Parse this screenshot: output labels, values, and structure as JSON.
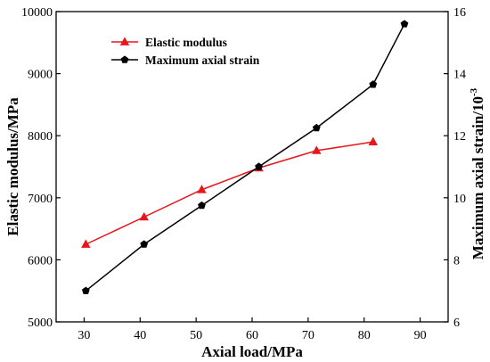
{
  "chart_data": {
    "type": "line",
    "xlabel": "Axial load/MPa",
    "ylabel_left": "Elastic modulus/MPa",
    "ylabel_right": "Maximum axial strain/10",
    "ylabel_right_exponent": "-3",
    "xlim": [
      25,
      95
    ],
    "ylim_left": [
      5000,
      10000
    ],
    "ylim_right": [
      6,
      16
    ],
    "x_ticks": [
      30,
      40,
      50,
      60,
      70,
      80,
      90
    ],
    "y_left_ticks": [
      5000,
      6000,
      7000,
      8000,
      9000,
      10000
    ],
    "y_right_ticks": [
      6,
      8,
      10,
      12,
      14,
      16
    ],
    "grid": false,
    "legend_position": "top-left",
    "series": [
      {
        "name": "Elastic modulus",
        "axis": "left",
        "color": "#e8161b",
        "marker": "triangle",
        "x": [
          30.3,
          40.7,
          51.0,
          61.2,
          71.5,
          81.6
        ],
        "y": [
          6250,
          6690,
          7130,
          7480,
          7760,
          7900
        ]
      },
      {
        "name": "Maximum axial strain",
        "axis": "right",
        "color": "#000000",
        "marker": "pentagon",
        "x": [
          30.3,
          40.7,
          51.0,
          61.2,
          71.5,
          81.6,
          87.2
        ],
        "y": [
          7.0,
          8.5,
          9.75,
          11.0,
          12.25,
          13.65,
          15.6
        ]
      }
    ]
  }
}
